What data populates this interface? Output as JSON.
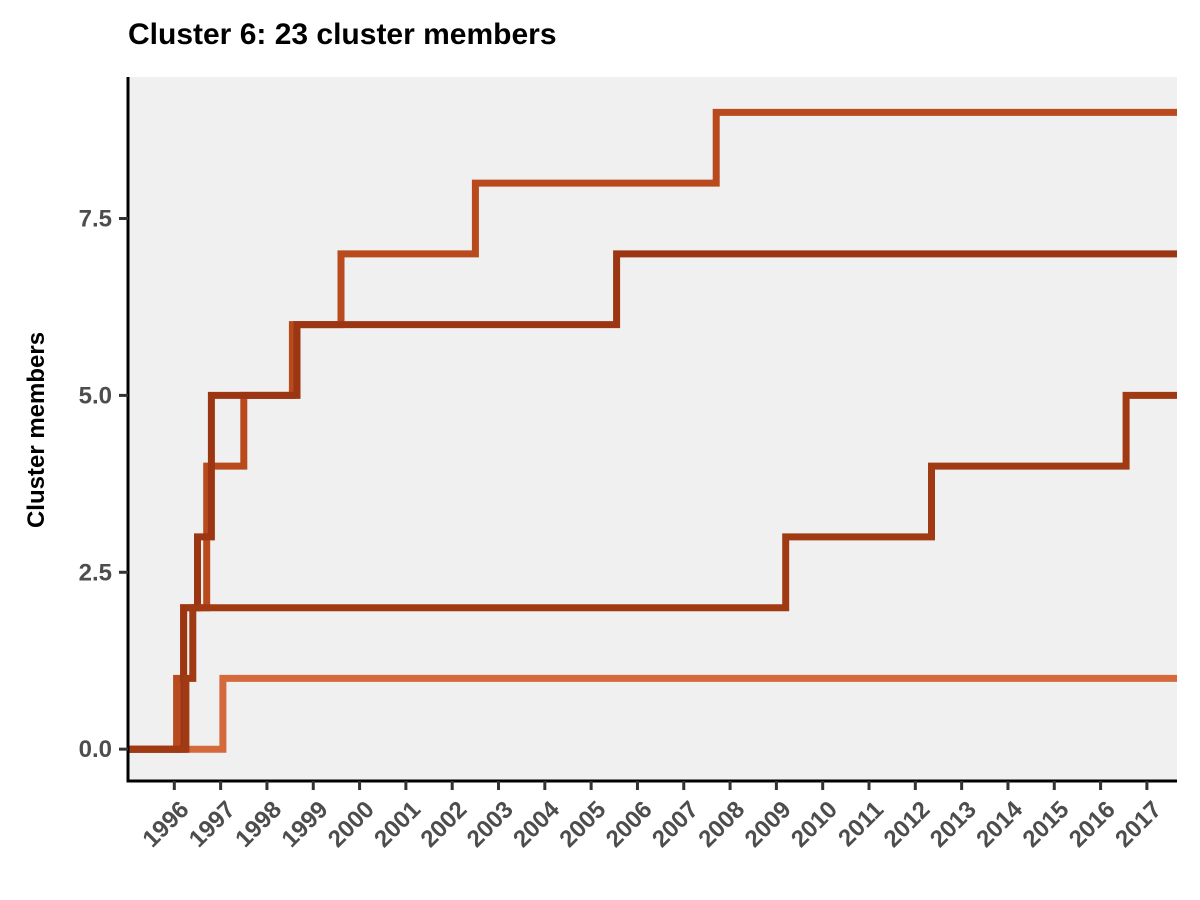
{
  "title": "Cluster 6: 23 cluster members",
  "chart_data": {
    "type": "line",
    "step": true,
    "title": "Cluster 6: 23 cluster members",
    "xlabel": "",
    "ylabel": "Cluster members",
    "xlim": [
      1995.0,
      2017.65
    ],
    "ylim": [
      -0.45,
      9.5
    ],
    "x_ticks": [
      "1996",
      "1997",
      "1998",
      "1999",
      "2000",
      "2001",
      "2002",
      "2003",
      "2004",
      "2005",
      "2006",
      "2007",
      "2008",
      "2009",
      "2010",
      "2011",
      "2012",
      "2013",
      "2014",
      "2015",
      "2016",
      "2017"
    ],
    "y_ticks": [
      "0.0",
      "2.5",
      "5.0",
      "7.5"
    ],
    "y_tick_values": [
      0,
      2.5,
      5.0,
      7.5
    ],
    "grid": false,
    "background": "#f0f0f0",
    "series": [
      {
        "color": "#d4693b",
        "points": [
          [
            1995.0,
            0
          ],
          [
            1997.05,
            0
          ],
          [
            1997.05,
            1
          ],
          [
            2017.65,
            1
          ]
        ]
      },
      {
        "color": "#b84a1e",
        "points": [
          [
            1995.0,
            0
          ],
          [
            1996.05,
            0
          ],
          [
            1996.05,
            1
          ],
          [
            1996.2,
            1
          ],
          [
            1996.2,
            2
          ],
          [
            1996.7,
            2
          ],
          [
            1996.7,
            4
          ],
          [
            1997.5,
            4
          ],
          [
            1997.5,
            5
          ],
          [
            1998.55,
            5
          ],
          [
            1998.55,
            6
          ],
          [
            1999.6,
            6
          ],
          [
            1999.6,
            7
          ],
          [
            2002.5,
            7
          ],
          [
            2002.5,
            8
          ],
          [
            2007.7,
            8
          ],
          [
            2007.7,
            9
          ],
          [
            2017.65,
            9
          ]
        ]
      },
      {
        "color": "#9c3512",
        "points": [
          [
            1995.0,
            0
          ],
          [
            1996.2,
            0
          ],
          [
            1996.2,
            2
          ],
          [
            1996.5,
            2
          ],
          [
            1996.5,
            3
          ],
          [
            1996.8,
            3
          ],
          [
            1996.8,
            5
          ],
          [
            1998.65,
            5
          ],
          [
            1998.65,
            6
          ],
          [
            2005.55,
            6
          ],
          [
            2005.55,
            7
          ],
          [
            2017.65,
            7
          ]
        ]
      },
      {
        "color": "#a03a13",
        "points": [
          [
            1995.0,
            0
          ],
          [
            1996.25,
            0
          ],
          [
            1996.25,
            1
          ],
          [
            1996.4,
            1
          ],
          [
            1996.4,
            2
          ],
          [
            2009.2,
            2
          ],
          [
            2009.2,
            3
          ],
          [
            2012.35,
            3
          ],
          [
            2012.35,
            4
          ],
          [
            2016.55,
            4
          ],
          [
            2016.55,
            5
          ],
          [
            2017.65,
            5
          ]
        ]
      }
    ]
  }
}
